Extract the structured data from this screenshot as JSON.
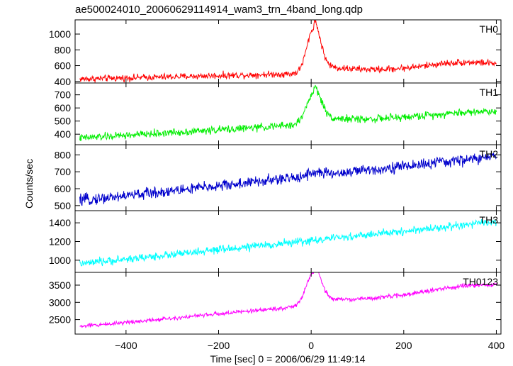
{
  "title": "ae500024010_20060629114914_wam3_trn_4band_long.qdp",
  "chart_data": {
    "type": "line",
    "xlabel": "Time [sec] 0 = 2006/06/29 11:49:14",
    "ylabel": "Counts/sec",
    "xlim": [
      -510,
      410
    ],
    "xticks": [
      -400,
      -200,
      0,
      200,
      400
    ],
    "x_step": 1,
    "grid": false,
    "panels": [
      {
        "name": "TH0",
        "color": "#ff0000",
        "ylim": [
          380,
          1180
        ],
        "yticks": [
          400,
          600,
          800,
          1000
        ],
        "shape": {
          "start": 430,
          "end": 560,
          "peak_t": 5,
          "peak": 560,
          "peak_width": 20,
          "tail": 120,
          "tail_decay": 80,
          "bump_t": 330,
          "bump": 90,
          "bump_width": 120,
          "drift_t": 200,
          "drift": 0,
          "noise": 38
        }
      },
      {
        "name": "TH1",
        "color": "#00ee00",
        "ylim": [
          320,
          790
        ],
        "yticks": [
          400,
          500,
          600,
          700
        ],
        "shape": {
          "start": 370,
          "end": 560,
          "peak_t": 5,
          "peak": 230,
          "peak_width": 22,
          "tail": 60,
          "tail_decay": 80,
          "bump_t": 330,
          "bump": 20,
          "bump_width": 120,
          "drift_t": 0,
          "drift": 0,
          "noise": 26
        }
      },
      {
        "name": "TH2",
        "color": "#0000cc",
        "ylim": [
          470,
          860
        ],
        "yticks": [
          500,
          600,
          700,
          800
        ],
        "shape": {
          "start": 530,
          "end": 790,
          "peak_t": 5,
          "peak": 20,
          "peak_width": 25,
          "tail": 0,
          "tail_decay": 80,
          "bump_t": 330,
          "bump": 0,
          "bump_width": 120,
          "drift_t": 0,
          "drift": 0,
          "noise": 30
        }
      },
      {
        "name": "TH3",
        "color": "#00ffff",
        "ylim": [
          870,
          1530
        ],
        "yticks": [
          1000,
          1200,
          1400
        ],
        "shape": {
          "start": 960,
          "end": 1410,
          "peak_t": 5,
          "peak": 0,
          "peak_width": 25,
          "tail": 0,
          "tail_decay": 80,
          "bump_t": 330,
          "bump": 0,
          "bump_width": 120,
          "drift_t": 0,
          "drift": 0,
          "noise": 38
        }
      },
      {
        "name": "TH0123",
        "color": "#ff00ff",
        "ylim": [
          2080,
          3870
        ],
        "yticks": [
          2500,
          3000,
          3500
        ],
        "shape": {
          "start": 2300,
          "end": 3400,
          "peak_t": 5,
          "peak": 950,
          "peak_width": 22,
          "tail": 200,
          "tail_decay": 80,
          "bump_t": 330,
          "bump": 150,
          "bump_width": 120,
          "drift_t": 0,
          "drift": 0,
          "noise": 55
        }
      }
    ]
  }
}
